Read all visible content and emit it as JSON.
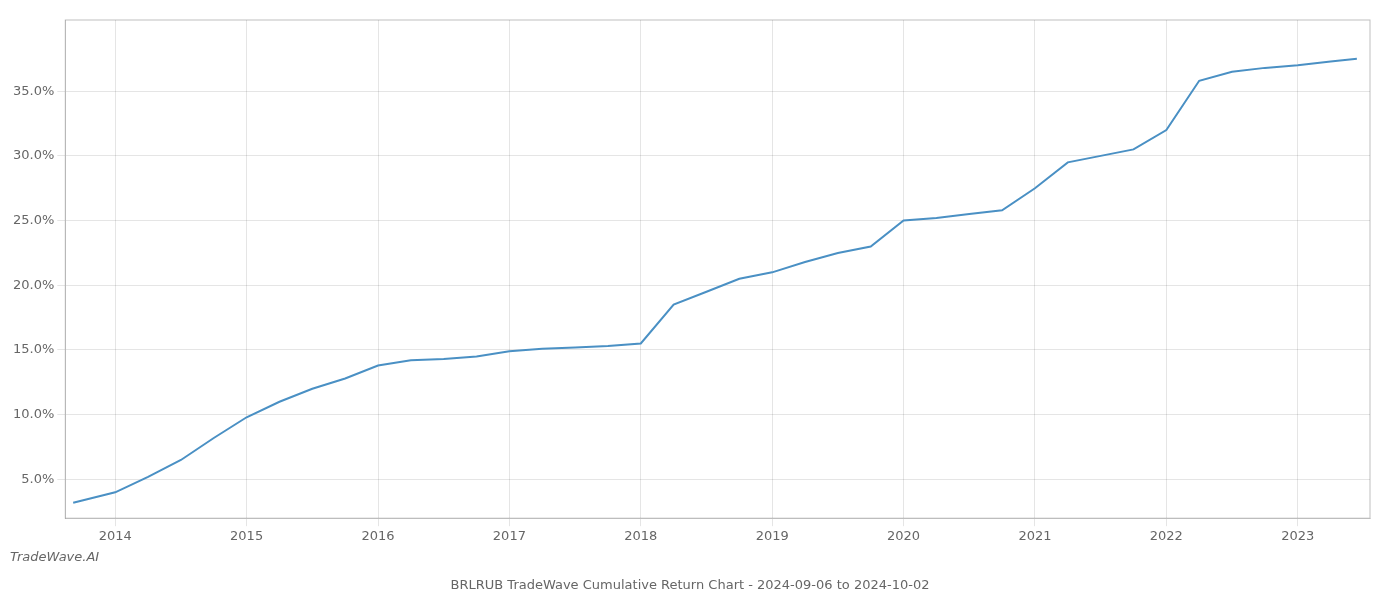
{
  "chart_data": {
    "type": "line",
    "title": "BRLRUB TradeWave Cumulative Return Chart - 2024-09-06 to 2024-10-02",
    "annotations": [
      "TradeWave.AI"
    ],
    "color": "#4a90c4",
    "grid": true,
    "x": [
      2013.68,
      2014.0,
      2014.25,
      2014.5,
      2014.75,
      2015.0,
      2015.25,
      2015.5,
      2015.75,
      2016.0,
      2016.25,
      2016.5,
      2016.75,
      2017.0,
      2017.25,
      2017.5,
      2017.75,
      2018.0,
      2018.25,
      2018.5,
      2018.75,
      2019.0,
      2019.25,
      2019.5,
      2019.75,
      2020.0,
      2020.25,
      2020.5,
      2020.75,
      2021.0,
      2021.25,
      2021.5,
      2021.75,
      2022.0,
      2022.25,
      2022.5,
      2022.75,
      2023.0,
      2023.25,
      2023.45
    ],
    "values": [
      3.2,
      4.0,
      5.2,
      6.5,
      8.2,
      9.8,
      11.0,
      12.0,
      12.8,
      13.8,
      14.2,
      14.3,
      14.5,
      14.9,
      15.1,
      15.2,
      15.3,
      15.5,
      18.5,
      19.5,
      20.5,
      21.0,
      21.8,
      22.5,
      23.0,
      25.0,
      25.2,
      25.5,
      25.8,
      27.5,
      29.5,
      30.0,
      30.5,
      32.0,
      35.8,
      36.5,
      36.8,
      37.0,
      37.3,
      37.5
    ],
    "xlim": [
      2013.62,
      2023.55
    ],
    "xticks": [
      2014,
      2015,
      2016,
      2017,
      2018,
      2019,
      2020,
      2021,
      2022,
      2023
    ],
    "ylim": [
      2.0,
      40.5
    ],
    "yticks": [
      {
        "value": 5.0,
        "label": "5.0%"
      },
      {
        "value": 10.0,
        "label": "10.0%"
      },
      {
        "value": 15.0,
        "label": "15.0%"
      },
      {
        "value": 20.0,
        "label": "20.0%"
      },
      {
        "value": 25.0,
        "label": "25.0%"
      },
      {
        "value": 30.0,
        "label": "30.0%"
      },
      {
        "value": 35.0,
        "label": "35.0%"
      }
    ]
  }
}
